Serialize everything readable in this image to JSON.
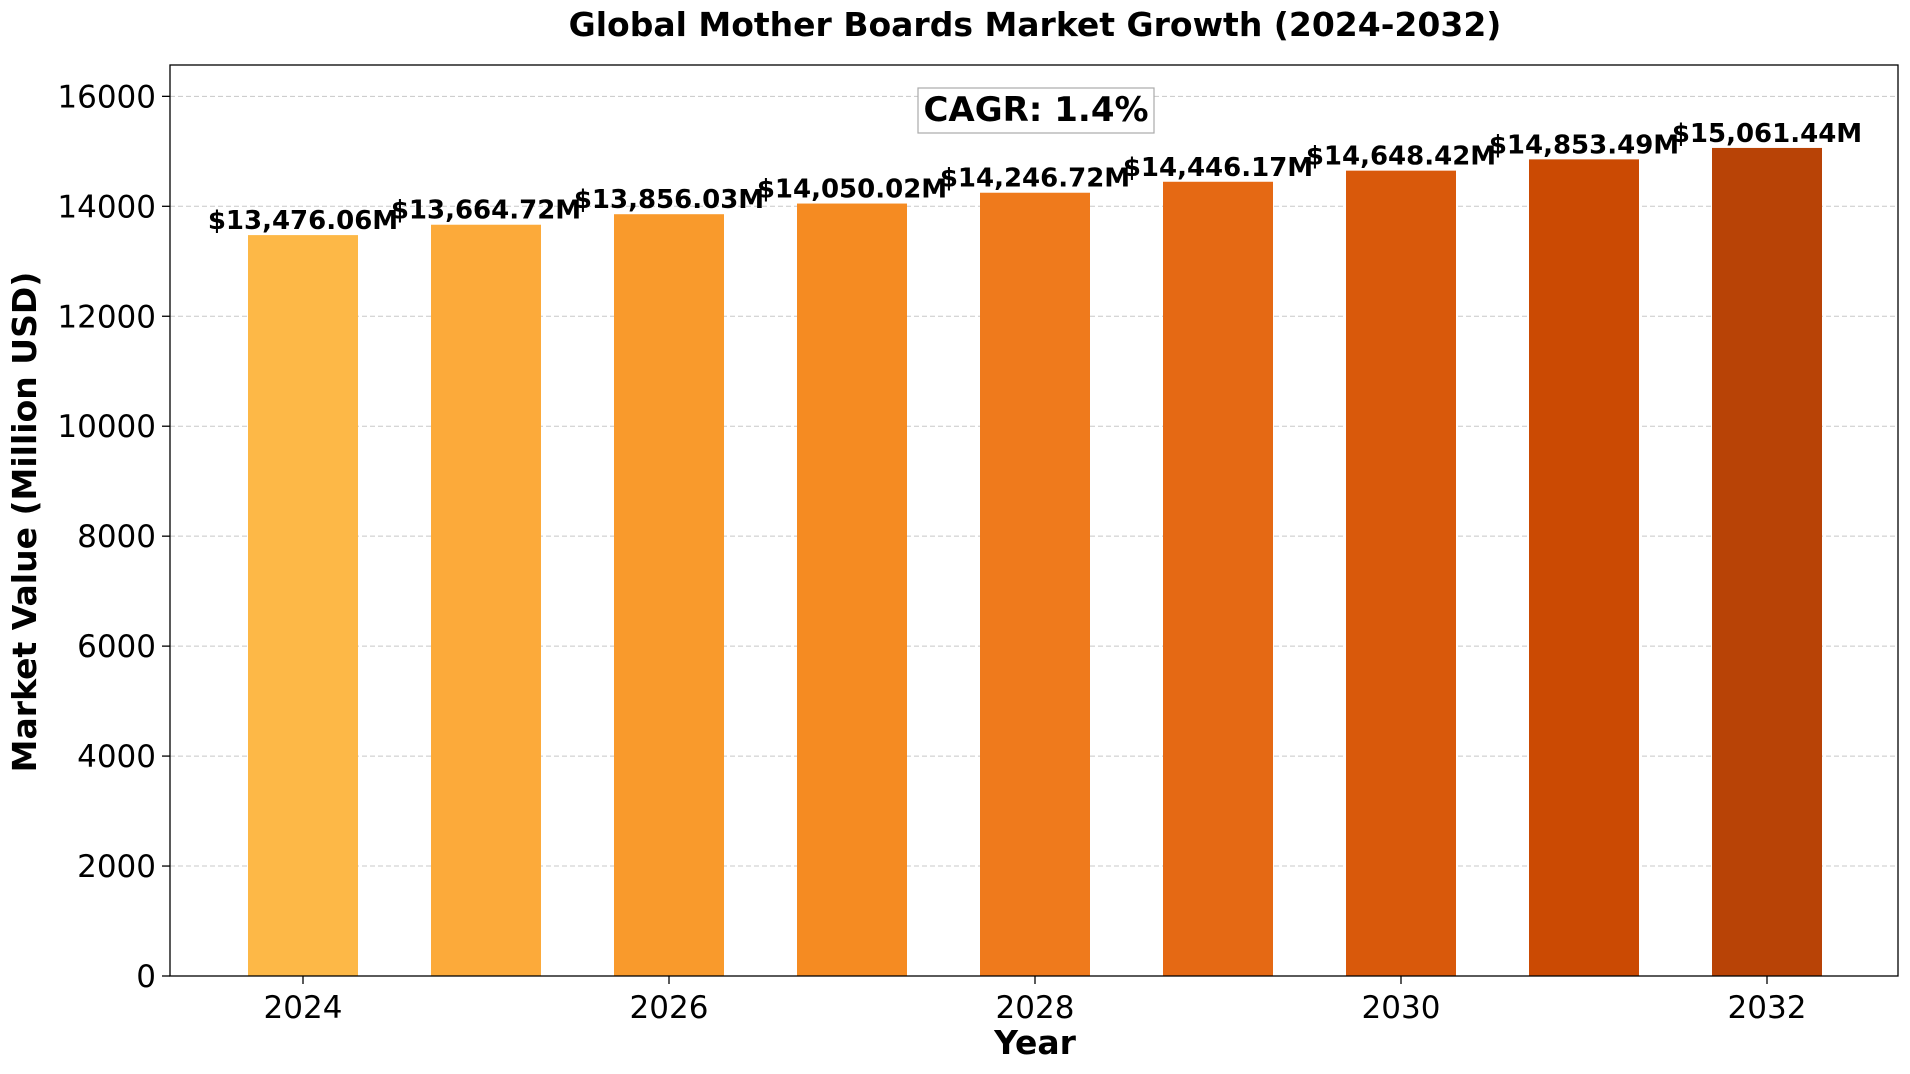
{
  "chart_data": {
    "type": "bar",
    "title": "Global Mother Boards Market Growth (2024-2032)",
    "xlabel": "Year",
    "ylabel": "Market Value (Million USD)",
    "categories": [
      "2024",
      "2025",
      "2026",
      "2027",
      "2028",
      "2029",
      "2030",
      "2031",
      "2032"
    ],
    "values": [
      13476.06,
      13664.72,
      13856.03,
      14050.02,
      14246.72,
      14446.17,
      14648.42,
      14853.49,
      15061.44
    ],
    "value_labels": [
      "$13,476.06M",
      "$13,664.72M",
      "$13,856.03M",
      "$14,050.02M",
      "$14,246.72M",
      "$14,446.17M",
      "$14,648.42M",
      "$14,853.49M",
      "$15,061.44M"
    ],
    "x_tick_labels": [
      "2024",
      "2026",
      "2028",
      "2030",
      "2032"
    ],
    "y_ticks": [
      0,
      2000,
      4000,
      6000,
      8000,
      10000,
      12000,
      14000,
      16000
    ],
    "ylim": [
      0,
      16570
    ],
    "grid": "y-dashed",
    "annotation": "CAGR: 1.4%",
    "colors": [
      "#fdb847",
      "#fcaa3a",
      "#f99a2c",
      "#f58b22",
      "#ef7a1c",
      "#e56914",
      "#d9590b",
      "#cb4a03",
      "#b84306"
    ]
  }
}
